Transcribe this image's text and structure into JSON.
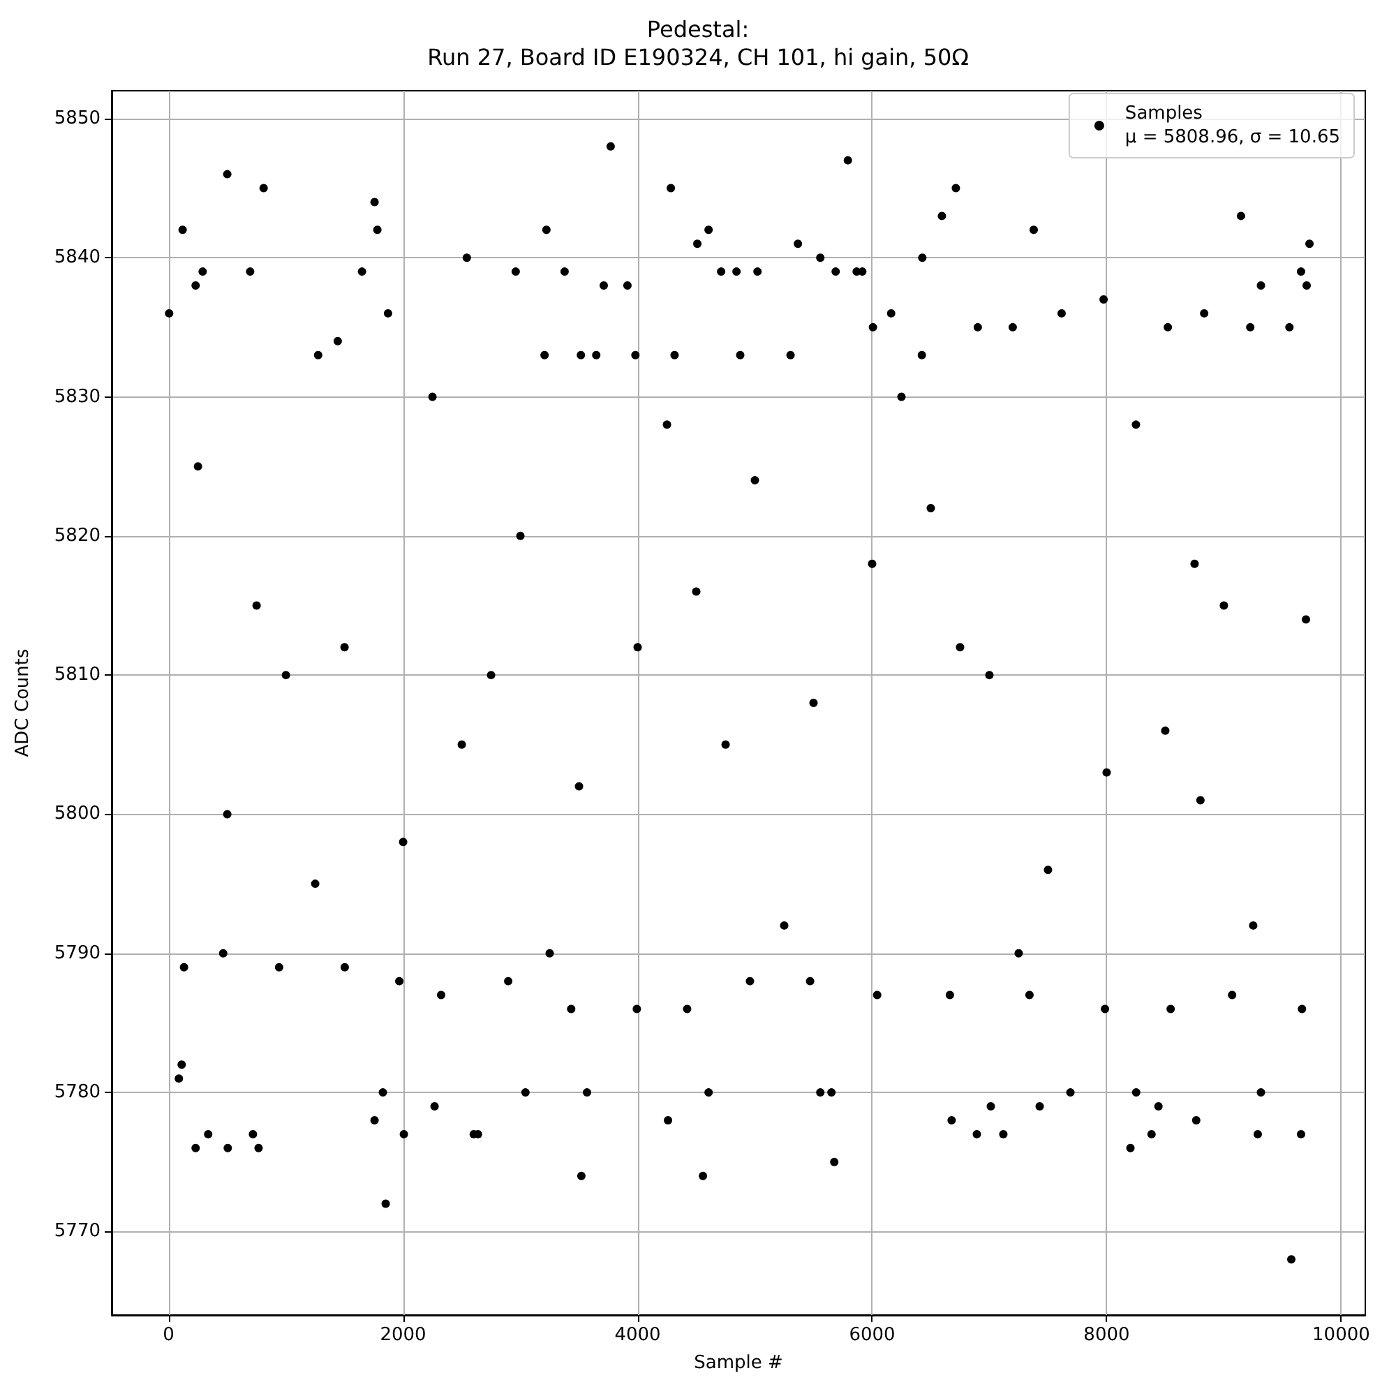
{
  "chart_data": {
    "type": "scatter",
    "title": "Pedestal:\nRun 27, Board ID E190324, CH 101, hi gain, 50Ω",
    "xlabel": "Sample #",
    "ylabel": "ADC Counts",
    "xlim": [
      -486,
      10206
    ],
    "xticks": [
      0,
      2000,
      4000,
      6000,
      8000,
      10000
    ],
    "ylim": [
      5764,
      5852
    ],
    "yticks": [
      5770,
      5780,
      5790,
      5800,
      5810,
      5820,
      5830,
      5840,
      5850
    ],
    "grid": true,
    "legend": "top right",
    "marker": "circle",
    "series": [
      {
        "name": "Samples\nμ = 5808.96, σ = 10.65",
        "color": "#000000",
        "x": [
          500,
          810,
          119,
          1756,
          1780,
          2543,
          3222,
          3770,
          4283,
          4509,
          4605,
          4,
          290,
          230,
          695,
          1649,
          2960,
          3377,
          3711,
          3913,
          4712,
          4843,
          5793,
          6714,
          6595,
          7378,
          5367,
          5558,
          6428,
          9146,
          9730,
          9658,
          9706,
          5022,
          5868,
          5916,
          5689,
          9316,
          1851,
          230,
          337,
          504,
          719,
          767,
          1756,
          2006,
          3520,
          4557,
          4259,
          2268,
          2602,
          2638,
          1827,
          3043,
          3568,
          4605,
          87,
          111,
          9575,
          5677,
          8203,
          6678,
          6893,
          7119,
          8383,
          9289,
          9658,
          8764,
          7012,
          7429,
          8442,
          5558,
          5653,
          7691,
          8252,
          9316,
          1275,
          1442,
          1871,
          3206,
          3516,
          3647,
          3981,
          4315,
          4875,
          5304,
          6007,
          6162,
          6424,
          6901,
          7199,
          7616,
          7974,
          8522,
          8832,
          9225,
          9559,
          131,
          465,
          942,
          1502,
          1967,
          2324,
          2896,
          3433,
          3993,
          4422,
          4958,
          5471,
          6043,
          6663,
          7342,
          7986,
          8546,
          9070,
          9666,
          1000,
          2500,
          4000,
          5500,
          7000,
          8500,
          9700,
          500,
          3000,
          6000,
          8000,
          9000,
          2000,
          4500,
          7500,
          3500,
          6500,
          1500,
          5000,
          8800,
          250,
          1250,
          2250,
          3250,
          4250,
          5250,
          6250,
          7250,
          8250,
          9250,
          750,
          2750,
          4750,
          6750,
          8750
        ],
        "values": [
          5846,
          5845,
          5842,
          5844,
          5842,
          5840,
          5842,
          5848,
          5845,
          5841,
          5842,
          5836,
          5839,
          5838,
          5839,
          5839,
          5839,
          5839,
          5838,
          5838,
          5839,
          5839,
          5847,
          5845,
          5843,
          5842,
          5841,
          5840,
          5840,
          5843,
          5841,
          5839,
          5838,
          5839,
          5839,
          5839,
          5839,
          5838,
          5772,
          5776,
          5777,
          5776,
          5777,
          5776,
          5778,
          5777,
          5774,
          5774,
          5778,
          5779,
          5777,
          5777,
          5780,
          5780,
          5780,
          5780,
          5781,
          5782,
          5768,
          5775,
          5776,
          5778,
          5777,
          5777,
          5777,
          5777,
          5777,
          5778,
          5779,
          5779,
          5779,
          5780,
          5780,
          5780,
          5780,
          5780,
          5833,
          5834,
          5836,
          5833,
          5833,
          5833,
          5833,
          5833,
          5833,
          5833,
          5835,
          5836,
          5833,
          5835,
          5835,
          5836,
          5837,
          5835,
          5836,
          5835,
          5835,
          5789,
          5790,
          5789,
          5789,
          5788,
          5787,
          5788,
          5786,
          5786,
          5786,
          5788,
          5788,
          5787,
          5787,
          5787,
          5786,
          5786,
          5787,
          5786,
          5810,
          5805,
          5812,
          5808,
          5810,
          5806,
          5814,
          5800,
          5820,
          5818,
          5803,
          5815,
          5798,
          5816,
          5796,
          5802,
          5822,
          5812,
          5824,
          5801,
          5825,
          5795,
          5830,
          5790,
          5828,
          5792,
          5830,
          5790,
          5828,
          5792,
          5815,
          5810,
          5805,
          5812,
          5818
        ]
      }
    ]
  }
}
